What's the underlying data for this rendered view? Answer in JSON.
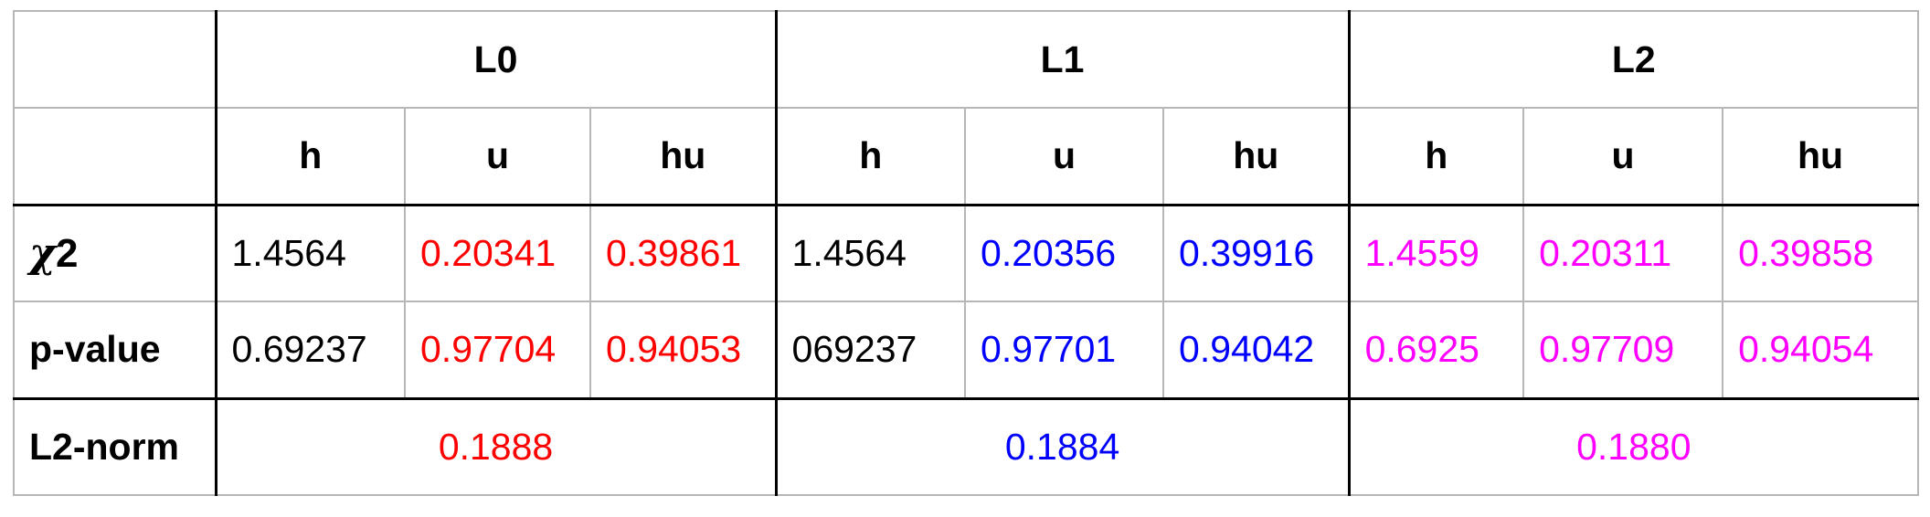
{
  "colors": {
    "black": "#000000",
    "red": "#ff0000",
    "blue": "#0000ff",
    "magenta": "#ff00ff",
    "grid": "#b7b7b7"
  },
  "header": {
    "groups": [
      "L0",
      "L1",
      "L2"
    ],
    "subcols": [
      "h",
      "u",
      "hu"
    ]
  },
  "rows": {
    "chi2": {
      "label_symbol": "χ",
      "label_suffix": "2",
      "L0": [
        "1.4564",
        "0.20341",
        "0.39861"
      ],
      "L1": [
        "1.4564",
        "0.20356",
        "0.39916"
      ],
      "L2": [
        "1.4559",
        "0.20311",
        "0.39858"
      ]
    },
    "pvalue": {
      "label": "p-value",
      "L0": [
        "0.69237",
        "0.97704",
        "0.94053"
      ],
      "L1": [
        "069237",
        "0.97701",
        "0.94042"
      ],
      "L2": [
        "0.6925",
        "0.97709",
        "0.94054"
      ]
    },
    "l2norm": {
      "label": "L2-norm",
      "L0": "0.1888",
      "L1": "0.1884",
      "L2": "0.1880"
    }
  }
}
